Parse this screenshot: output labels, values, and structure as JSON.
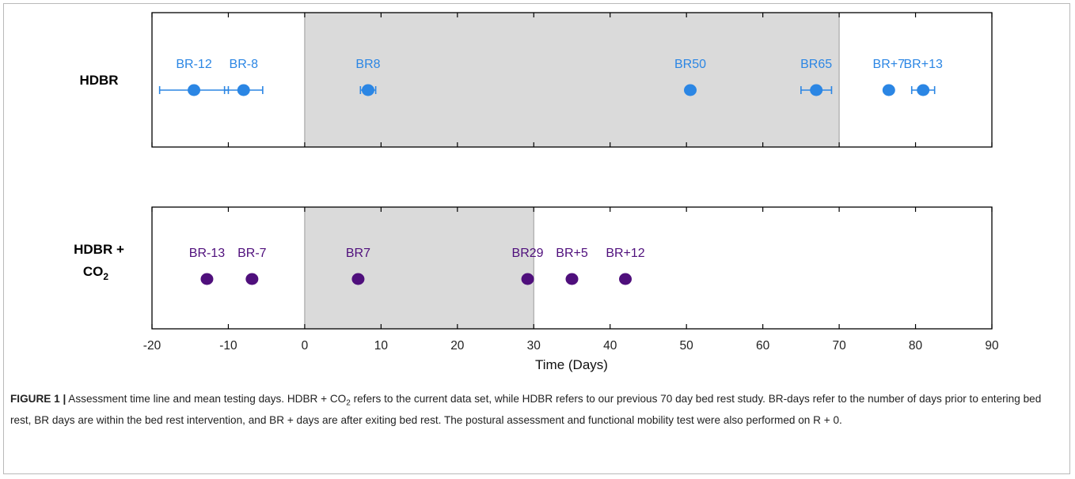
{
  "chart_data": {
    "type": "scatter",
    "xlabel": "Time (Days)",
    "xlim": [
      -20,
      90
    ],
    "xticks": [
      -20,
      -10,
      0,
      10,
      20,
      30,
      40,
      50,
      60,
      70,
      80,
      90
    ],
    "grid": false,
    "panels": [
      {
        "name": "HDBR",
        "label_lines": [
          "HDBR"
        ],
        "color": "#2b86e4",
        "shaded_interval": [
          0,
          70
        ],
        "points": [
          {
            "label": "BR-12",
            "x": -14.5,
            "err": 4.5
          },
          {
            "label": "BR-8",
            "x": -8.0,
            "err": 2.5
          },
          {
            "label": "BR8",
            "x": 8.3,
            "err": 1.0
          },
          {
            "label": "BR50",
            "x": 50.5,
            "err": 0
          },
          {
            "label": "BR65",
            "x": 67.0,
            "err": 2.0
          },
          {
            "label": "BR+7",
            "x": 76.5,
            "err": 0
          },
          {
            "label": "BR+13",
            "x": 81.0,
            "err": 1.5
          }
        ]
      },
      {
        "name": "HDBR + CO2",
        "label_lines": [
          "HDBR +",
          "CO"
        ],
        "label_sub": "2",
        "color": "#4f0f7c",
        "shaded_interval": [
          0,
          30
        ],
        "points": [
          {
            "label": "BR-13",
            "x": -12.8,
            "err": 0
          },
          {
            "label": "BR-7",
            "x": -6.9,
            "err": 0
          },
          {
            "label": "BR7",
            "x": 7.0,
            "err": 0
          },
          {
            "label": "BR29",
            "x": 29.2,
            "err": 0
          },
          {
            "label": "BR+5",
            "x": 35.0,
            "err": 0
          },
          {
            "label": "BR+12",
            "x": 42.0,
            "err": 0
          }
        ]
      }
    ]
  },
  "caption": {
    "label": "FIGURE 1 |",
    "text_parts": [
      " Assessment time line and mean testing days. HDBR + CO",
      "2",
      " refers to the current data set, while HDBR refers to our previous 70 day bed rest study. BR-days refer to the number of days prior to entering bed rest, BR days are within the bed rest intervention, and BR + days are after exiting bed rest. The postural assessment and functional mobility test were also performed on R + 0."
    ]
  }
}
